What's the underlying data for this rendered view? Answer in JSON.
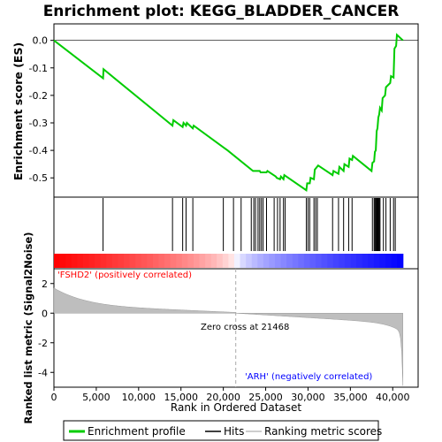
{
  "chart_data": {
    "type": "line",
    "title": "Enrichment plot: KEGG_BLADDER_CANCER",
    "es_panel": {
      "ylabel": "Enrichment score (ES)",
      "ylim": [
        -0.57,
        0.06
      ],
      "yticks": [
        0.0,
        -0.1,
        -0.2,
        -0.3,
        -0.4,
        -0.5
      ],
      "ytick_labels": [
        "0.0",
        "-0.1",
        "-0.2",
        "-0.3",
        "-0.4",
        "-0.5"
      ],
      "line_color": "#00cc00",
      "series": [
        {
          "x": [
            0,
            5800,
            5850,
            14000,
            14100,
            15200,
            15300,
            15600,
            15700,
            16400,
            16500,
            20500,
            23500,
            24300,
            24400,
            25100,
            25200,
            26200,
            26300,
            26700,
            26800,
            27100,
            27200,
            29800,
            29900,
            30200,
            30300,
            30700,
            30800,
            31200,
            32900,
            33000,
            33600,
            33700,
            34200,
            34300,
            34800,
            34900,
            35200,
            35300,
            37500,
            37600,
            37800,
            37900,
            38000,
            38100,
            38200,
            38300,
            38400,
            38500,
            38700,
            38800,
            39100,
            39200,
            39700,
            39800,
            40100,
            40200,
            40400,
            40500,
            41200
          ],
          "y": [
            0.0,
            -0.138,
            -0.105,
            -0.31,
            -0.29,
            -0.315,
            -0.3,
            -0.31,
            -0.3,
            -0.32,
            -0.31,
            -0.4,
            -0.475,
            -0.475,
            -0.48,
            -0.48,
            -0.475,
            -0.495,
            -0.5,
            -0.505,
            -0.495,
            -0.505,
            -0.49,
            -0.545,
            -0.52,
            -0.52,
            -0.5,
            -0.505,
            -0.47,
            -0.455,
            -0.49,
            -0.475,
            -0.485,
            -0.46,
            -0.475,
            -0.45,
            -0.46,
            -0.43,
            -0.435,
            -0.42,
            -0.475,
            -0.445,
            -0.44,
            -0.405,
            -0.4,
            -0.33,
            -0.32,
            -0.28,
            -0.27,
            -0.245,
            -0.255,
            -0.21,
            -0.2,
            -0.17,
            -0.155,
            -0.13,
            -0.135,
            -0.03,
            -0.02,
            0.02,
            0.0
          ]
        }
      ]
    },
    "hits_panel": {
      "hit_positions": [
        5800,
        14000,
        15200,
        15600,
        16400,
        20000,
        21200,
        22100,
        23300,
        23600,
        23800,
        24100,
        24300,
        24500,
        24700,
        25100,
        26000,
        26400,
        26700,
        27100,
        27300,
        29800,
        30000,
        30200,
        30700,
        30900,
        31100,
        32900,
        33600,
        34200,
        34800,
        35200,
        37600,
        37800,
        37900,
        38000,
        38100,
        38200,
        38300,
        38400,
        38500,
        38900,
        39200,
        39700,
        40100,
        40300
      ]
    },
    "metric_panel": {
      "ylabel": "Ranked list metric (Signal2Noise)",
      "ylim": [
        -5.0,
        3.0
      ],
      "yticks": [
        2,
        0,
        -2,
        -4
      ],
      "ytick_labels": [
        "2",
        "0",
        "-2",
        "-4"
      ],
      "zero_cross": 21468,
      "zero_cross_label": "Zero cross at 21468",
      "pos_label": "'FSHD2' (positively correlated)",
      "neg_label": "'ARH' (negatively correlated)",
      "pos_color": "#ff0000",
      "neg_color": "#0000ff",
      "fill_color": "#bebebe"
    },
    "xaxis": {
      "xlabel": "Rank in Ordered Dataset",
      "xlim": [
        0,
        43000
      ],
      "xticks": [
        0,
        5000,
        10000,
        15000,
        20000,
        25000,
        30000,
        35000,
        40000
      ],
      "xtick_labels": [
        "0",
        "5,000",
        "10,000",
        "15,000",
        "20,000",
        "25,000",
        "30,000",
        "35,000",
        "40,000"
      ],
      "n_genes": 41200
    },
    "legend": {
      "placement": "bottom",
      "entries": [
        "Enrichment profile",
        "Hits",
        "Ranking metric scores"
      ]
    },
    "colors": {
      "enrichment_line": "#00cc00",
      "hits": "#000000",
      "metric_line": "#bebebe"
    }
  }
}
